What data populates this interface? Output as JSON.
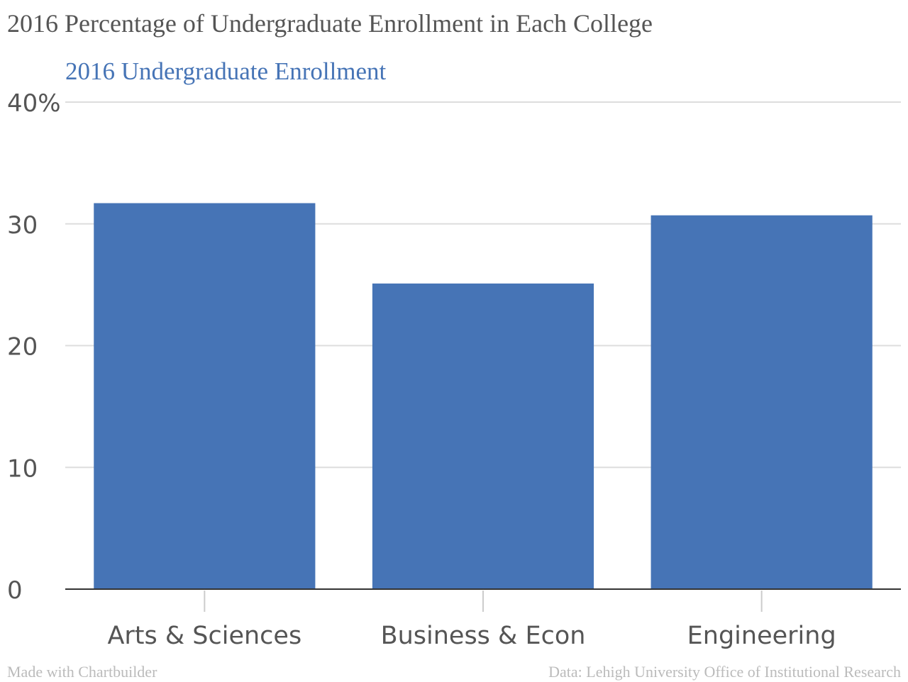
{
  "chart_data": {
    "type": "bar",
    "title": "2016 Percentage of Undergraduate Enrollment in Each College",
    "legend": {
      "entries": [
        "2016 Undergraduate Enrollment"
      ],
      "placement": "top-left"
    },
    "categories": [
      "Arts & Sciences",
      "Business & Econ",
      "Engineering"
    ],
    "series": [
      {
        "name": "2016 Undergraduate Enrollment",
        "values": [
          31.7,
          25.1,
          30.7
        ],
        "color": "#4674b6"
      }
    ],
    "y_ticks": [
      "0",
      "10",
      "20",
      "30",
      "40%"
    ],
    "ylim": [
      0,
      40
    ],
    "grid": true,
    "xlabel": "",
    "ylabel": ""
  },
  "footer": {
    "credit": "Made with Chartbuilder",
    "source": "Data: Lehigh University Office of Institutional Research"
  },
  "colors": {
    "bar": "#4674b6",
    "grid": "#dddddd",
    "axis": "#333333",
    "tick_text": "#555555",
    "title_text": "#555555",
    "footer_text": "#bbbbbb"
  }
}
